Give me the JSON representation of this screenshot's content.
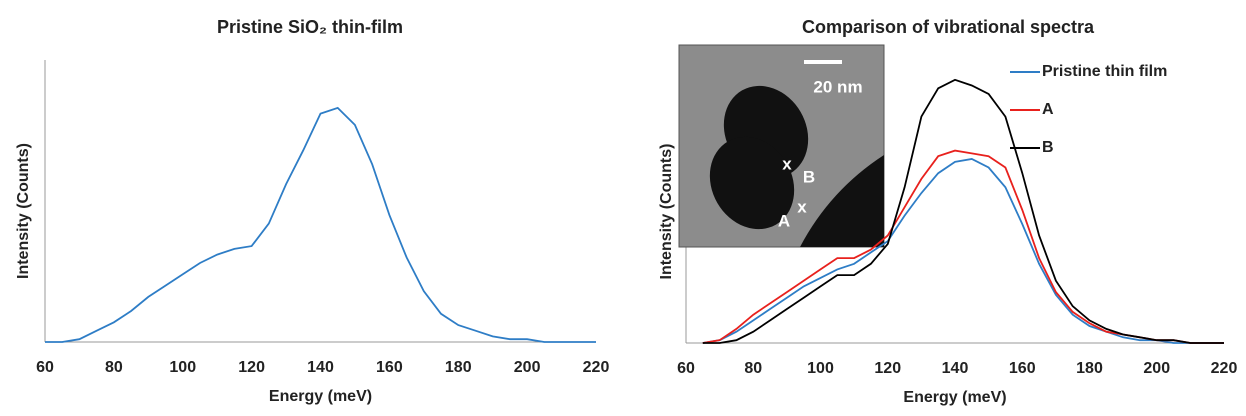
{
  "chart_data": [
    {
      "type": "line",
      "title": "Pristine SiO₂ thin-film",
      "x_label": "Energy (meV)",
      "y_label": "Intensity (Counts)",
      "x": [
        60,
        65,
        70,
        75,
        80,
        85,
        90,
        95,
        100,
        105,
        110,
        115,
        120,
        125,
        130,
        135,
        140,
        145,
        150,
        155,
        160,
        165,
        170,
        175,
        180,
        185,
        190,
        195,
        200,
        205,
        210,
        215,
        220
      ],
      "series": [
        {
          "name": null,
          "color": "#2e7dc6",
          "values": [
            0,
            0,
            1,
            4,
            7,
            11,
            16,
            20,
            24,
            28,
            31,
            33,
            34,
            42,
            56,
            68,
            81,
            83,
            77,
            63,
            45,
            30,
            18,
            10,
            6,
            4,
            2,
            1,
            1,
            0,
            0,
            0,
            0
          ]
        }
      ],
      "xlim": [
        60,
        220
      ],
      "xticks": [
        60,
        80,
        100,
        120,
        140,
        160,
        180,
        200,
        220
      ],
      "ylim": [
        0,
        100
      ]
    },
    {
      "type": "line",
      "title": "Comparison of vibrational spectra",
      "x_label": "Energy (meV)",
      "y_label": "Intensity (Counts)",
      "x": [
        65,
        70,
        75,
        80,
        85,
        90,
        95,
        100,
        105,
        110,
        115,
        120,
        125,
        130,
        135,
        140,
        145,
        150,
        155,
        160,
        165,
        170,
        175,
        180,
        185,
        190,
        195,
        200,
        205,
        210,
        215,
        220
      ],
      "series": [
        {
          "name": "Pristine thin film",
          "color": "#2e7dc6",
          "values": [
            0,
            1,
            4,
            8,
            12,
            16,
            20,
            23,
            26,
            28,
            32,
            36,
            45,
            53,
            60,
            64,
            65,
            62,
            55,
            42,
            28,
            17,
            10,
            6,
            4,
            2,
            1,
            1,
            0,
            0,
            0,
            0
          ]
        },
        {
          "name": "A",
          "color": "#e8211d",
          "values": [
            0,
            1,
            5,
            10,
            14,
            18,
            22,
            26,
            30,
            30,
            33,
            38,
            48,
            58,
            66,
            68,
            67,
            66,
            62,
            47,
            30,
            18,
            11,
            7,
            4,
            3,
            2,
            1,
            1,
            0,
            0,
            0
          ]
        },
        {
          "name": "B",
          "color": "#000000",
          "values": [
            0,
            0,
            1,
            4,
            8,
            12,
            16,
            20,
            24,
            24,
            28,
            35,
            55,
            80,
            90,
            93,
            91,
            88,
            80,
            60,
            38,
            22,
            13,
            8,
            5,
            3,
            2,
            1,
            1,
            0,
            0,
            0
          ]
        }
      ],
      "xlim": [
        60,
        220
      ],
      "xticks": [
        60,
        80,
        100,
        120,
        140,
        160,
        180,
        200,
        220
      ],
      "ylim": [
        0,
        100
      ],
      "inset": {
        "scale_label": "20 nm",
        "points": [
          {
            "label": "A",
            "marker": "x"
          },
          {
            "label": "B",
            "marker": "x"
          }
        ]
      }
    }
  ]
}
